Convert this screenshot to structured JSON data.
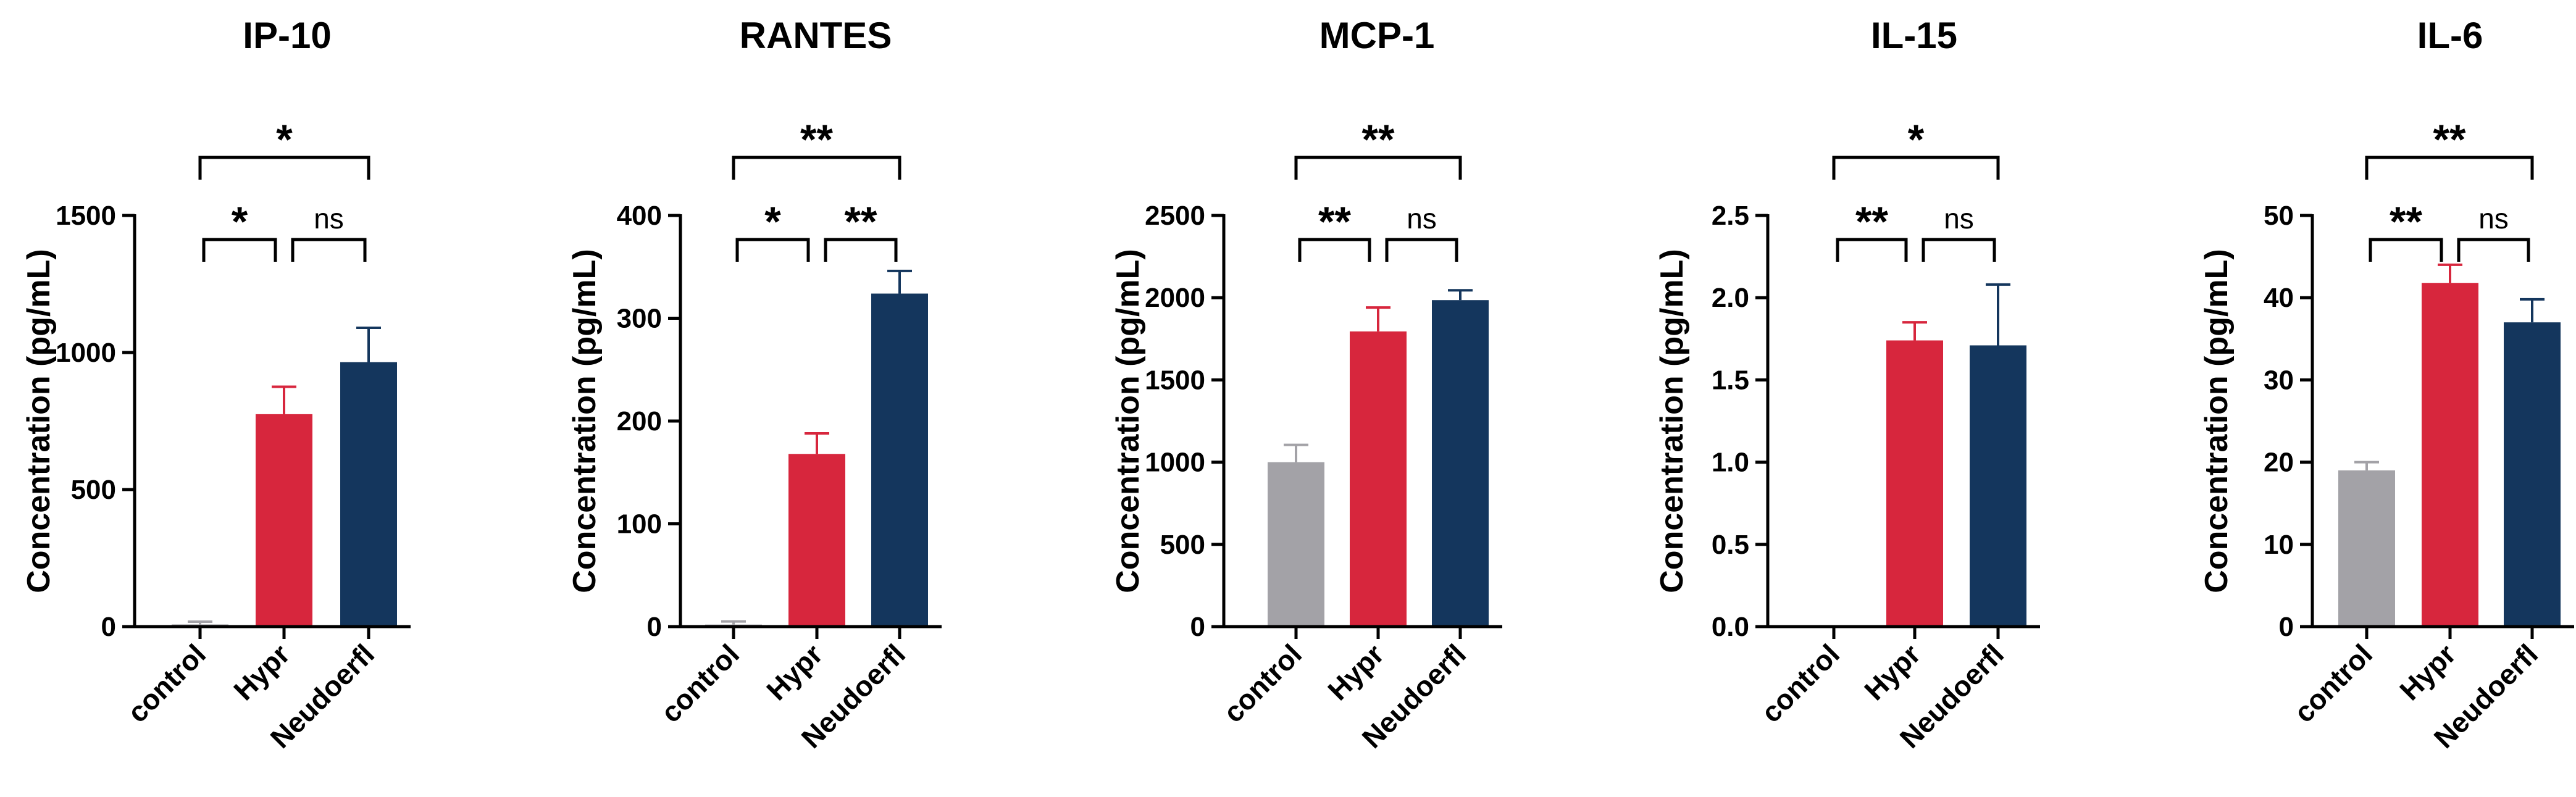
{
  "chart_data": [
    {
      "type": "bar",
      "title": "IP-10",
      "ylabel": "Concentration (pg/mL)",
      "categories": [
        "control",
        "Hypr",
        "Neudoerfl"
      ],
      "values": [
        8,
        775,
        965
      ],
      "errors": [
        10,
        100,
        125
      ],
      "colors": [
        "#a3a2a7",
        "#d7263d",
        "#14365d"
      ],
      "ylim": [
        0,
        1500
      ],
      "yticks": [
        0,
        500,
        1000,
        1500
      ],
      "comparisons": [
        {
          "from": 0,
          "to": 1,
          "label": "*"
        },
        {
          "from": 1,
          "to": 2,
          "label": "ns"
        },
        {
          "from": 0,
          "to": 2,
          "label": "*"
        }
      ]
    },
    {
      "type": "bar",
      "title": "RANTES",
      "ylabel": "Concentration (pg/mL)",
      "categories": [
        "control",
        "Hypr",
        "Neudoerfl"
      ],
      "values": [
        2,
        168,
        324
      ],
      "errors": [
        3,
        20,
        22
      ],
      "colors": [
        "#a3a2a7",
        "#d7263d",
        "#14365d"
      ],
      "ylim": [
        0,
        400
      ],
      "yticks": [
        0,
        100,
        200,
        300,
        400
      ],
      "comparisons": [
        {
          "from": 0,
          "to": 1,
          "label": "*"
        },
        {
          "from": 1,
          "to": 2,
          "label": "**"
        },
        {
          "from": 0,
          "to": 2,
          "label": "**"
        }
      ]
    },
    {
      "type": "bar",
      "title": "MCP-1",
      "ylabel": "Concentration (pg/mL)",
      "categories": [
        "control",
        "Hypr",
        "Neudoerfl"
      ],
      "values": [
        1000,
        1795,
        1985
      ],
      "errors": [
        105,
        145,
        60
      ],
      "colors": [
        "#a3a2a7",
        "#d7263d",
        "#14365d"
      ],
      "ylim": [
        0,
        2500
      ],
      "yticks": [
        0,
        500,
        1000,
        1500,
        2000,
        2500
      ],
      "comparisons": [
        {
          "from": 0,
          "to": 1,
          "label": "**"
        },
        {
          "from": 1,
          "to": 2,
          "label": "ns"
        },
        {
          "from": 0,
          "to": 2,
          "label": "**"
        }
      ]
    },
    {
      "type": "bar",
      "title": "IL-15",
      "ylabel": "Concentration (pg/mL)",
      "categories": [
        "control",
        "Hypr",
        "Neudoerfl"
      ],
      "values": [
        0,
        1.74,
        1.71
      ],
      "errors": [
        0,
        0.11,
        0.37
      ],
      "colors": [
        "#a3a2a7",
        "#d7263d",
        "#14365d"
      ],
      "ylim": [
        0,
        2.5
      ],
      "yticks": [
        0.0,
        0.5,
        1.0,
        1.5,
        2.0,
        2.5
      ],
      "yticklabels": [
        "0.0",
        "0.5",
        "1.0",
        "1.5",
        "2.0",
        "2.5"
      ],
      "comparisons": [
        {
          "from": 0,
          "to": 1,
          "label": "**"
        },
        {
          "from": 1,
          "to": 2,
          "label": "ns"
        },
        {
          "from": 0,
          "to": 2,
          "label": "*"
        }
      ]
    },
    {
      "type": "bar",
      "title": "IL-6",
      "ylabel": "Concentration (pg/mL)",
      "categories": [
        "control",
        "Hypr",
        "Neudoerfl"
      ],
      "values": [
        19,
        41.8,
        37
      ],
      "errors": [
        1,
        2.2,
        2.8
      ],
      "colors": [
        "#a3a2a7",
        "#d7263d",
        "#14365d"
      ],
      "ylim": [
        0,
        50
      ],
      "yticks": [
        0,
        10,
        20,
        30,
        40,
        50
      ],
      "comparisons": [
        {
          "from": 0,
          "to": 1,
          "label": "**"
        },
        {
          "from": 1,
          "to": 2,
          "label": "ns"
        },
        {
          "from": 0,
          "to": 2,
          "label": "**"
        }
      ]
    }
  ]
}
